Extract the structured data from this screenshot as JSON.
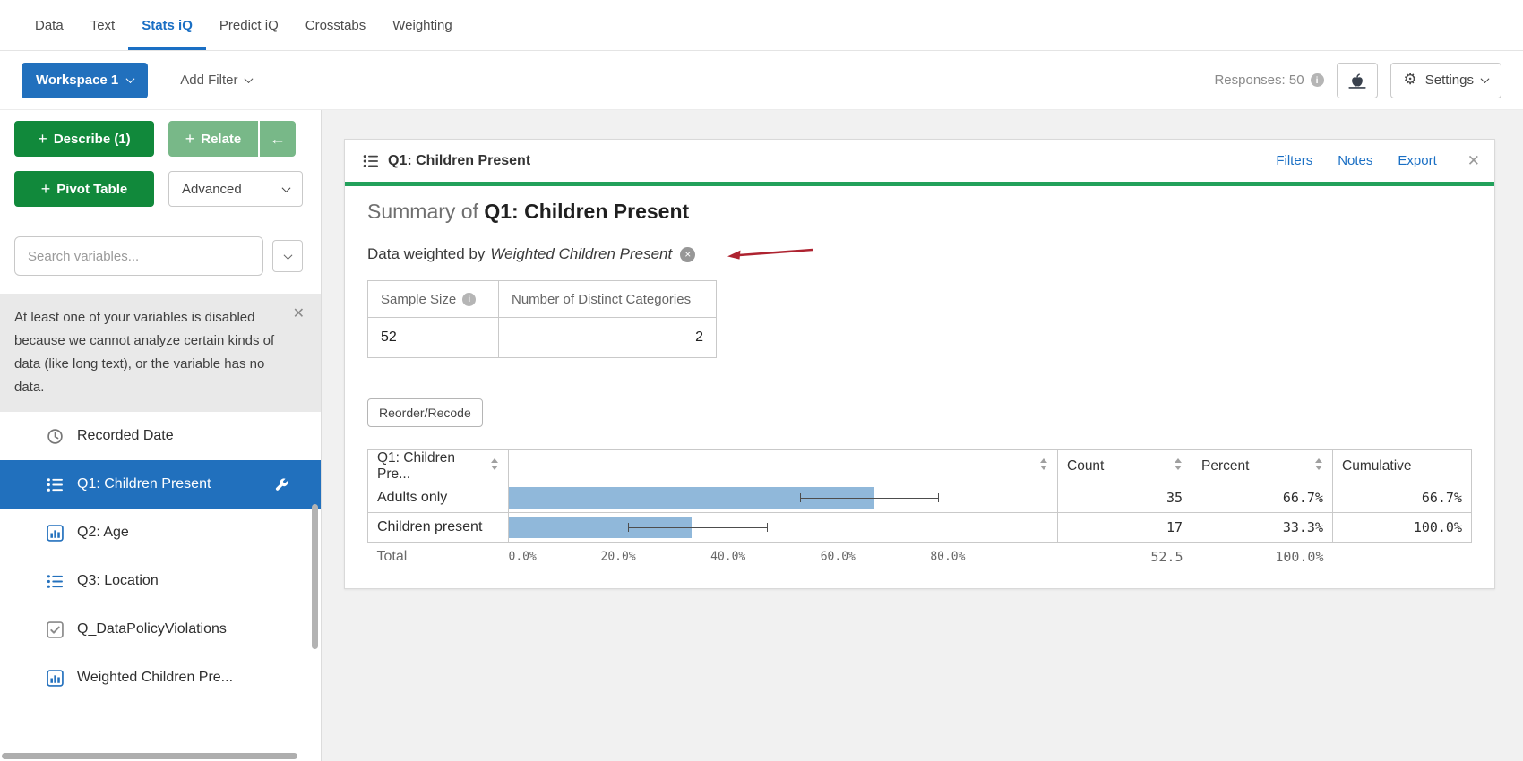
{
  "colors": {
    "accent_blue": "#2170bd",
    "link_blue": "#1a6fc4",
    "green_dark": "#11893b",
    "green_light": "#78b888",
    "green_bar": "#22a15b",
    "bar_blue": "#90b8da",
    "arrow_red": "#ae2330"
  },
  "icons": {
    "plus": "+",
    "info": "i",
    "gear": "⚙",
    "close": "✕",
    "circle_x": "×",
    "back_arrow": "←"
  },
  "topnav": {
    "tabs": [
      {
        "label": "Data"
      },
      {
        "label": "Text"
      },
      {
        "label": "Stats iQ",
        "active": true
      },
      {
        "label": "Predict iQ"
      },
      {
        "label": "Crosstabs"
      },
      {
        "label": "Weighting"
      }
    ]
  },
  "toolbar": {
    "workspace": "Workspace 1",
    "add_filter": "Add Filter",
    "responses": "Responses: 50",
    "settings": "Settings"
  },
  "sidebar": {
    "describe": "Describe (1)",
    "relate": "Relate",
    "pivot": "Pivot Table",
    "advanced": "Advanced",
    "search_placeholder": "Search variables...",
    "notice": "At least one of your variables is disabled because we cannot analyze certain kinds of data (like long text), or the variable has no data.",
    "variables": [
      {
        "label": "Recorded Date",
        "icon": "clock"
      },
      {
        "label": "Q1: Children Present",
        "icon": "list",
        "selected": true
      },
      {
        "label": "Q2: Age",
        "icon": "bar-chart"
      },
      {
        "label": "Q3: Location",
        "icon": "list"
      },
      {
        "label": "Q_DataPolicyViolations",
        "icon": "checkbox"
      },
      {
        "label": "Weighted Children Pre...",
        "icon": "bar-chart"
      }
    ]
  },
  "card": {
    "title": "Q1: Children Present",
    "links": {
      "filters": "Filters",
      "notes": "Notes",
      "export": "Export"
    },
    "summary_prefix": "Summary of",
    "summary_subject": "Q1: Children Present",
    "weight_note_prefix": "Data weighted by",
    "weight_variable": "Weighted Children Present",
    "stats": {
      "sample_size_label": "Sample Size",
      "sample_size": "52",
      "categories_label": "Number of Distinct Categories",
      "categories": "2"
    },
    "reorder_button": "Reorder/Recode"
  },
  "chart_data": {
    "type": "bar",
    "orientation": "horizontal",
    "title": "Q1: Children Present frequency summary",
    "columns": {
      "variable": "Q1: Children Pre...",
      "count": "Count",
      "percent": "Percent",
      "cumulative": "Cumulative"
    },
    "categories": [
      "Adults only",
      "Children present"
    ],
    "rows": [
      {
        "label": "Adults only",
        "value": 66.7,
        "count": "35",
        "percent": "66.7%",
        "cumulative": "66.7%",
        "ci": {
          "low": 53.1,
          "high": 78.5
        }
      },
      {
        "label": "Children present",
        "value": 33.3,
        "count": "17",
        "percent": "33.3%",
        "cumulative": "100.0%",
        "ci": {
          "low": 21.8,
          "high": 47.2
        }
      }
    ],
    "total": {
      "label": "Total",
      "count": "52.5",
      "percent": "100.0%"
    },
    "axis": {
      "xlim": [
        0,
        100
      ],
      "ticks": [
        {
          "label": "0.0%",
          "pos": 0
        },
        {
          "label": "20.0%",
          "pos": 20
        },
        {
          "label": "40.0%",
          "pos": 40
        },
        {
          "label": "60.0%",
          "pos": 60
        },
        {
          "label": "80.0%",
          "pos": 80
        }
      ]
    }
  }
}
